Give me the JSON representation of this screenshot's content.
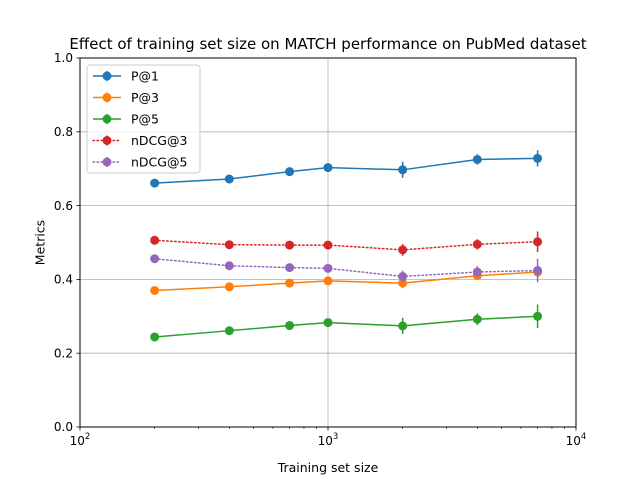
{
  "chart_data": {
    "type": "line",
    "title": "Effect of training set size on MATCH performance on PubMed dataset",
    "xlabel": "Training set size",
    "ylabel": "Metrics",
    "xscale": "log",
    "xlim": [
      100,
      10000
    ],
    "ylim": [
      0.0,
      1.0
    ],
    "x_ticks": [
      {
        "value": 100,
        "base": "10",
        "exp": "2"
      },
      {
        "value": 1000,
        "base": "10",
        "exp": "3"
      },
      {
        "value": 10000,
        "base": "10",
        "exp": "4"
      }
    ],
    "y_ticks": [
      {
        "value": 0.0,
        "label": "0.0"
      },
      {
        "value": 0.2,
        "label": "0.2"
      },
      {
        "value": 0.4,
        "label": "0.4"
      },
      {
        "value": 0.6,
        "label": "0.6"
      },
      {
        "value": 0.8,
        "label": "0.8"
      },
      {
        "value": 1.0,
        "label": "1.0"
      }
    ],
    "grid": "major, both axes",
    "legend_position": "upper left",
    "x": [
      200,
      400,
      700,
      1000,
      2000,
      4000,
      7000
    ],
    "series": [
      {
        "name": "P@1",
        "color": "#1f77b4",
        "linestyle": "solid",
        "values": [
          0.661,
          0.672,
          0.692,
          0.703,
          0.697,
          0.725,
          0.728
        ],
        "errors": [
          0.004,
          0.004,
          0.008,
          0.01,
          0.022,
          0.014,
          0.022
        ]
      },
      {
        "name": "P@3",
        "color": "#ff7f0e",
        "linestyle": "solid",
        "values": [
          0.37,
          0.38,
          0.39,
          0.396,
          0.39,
          0.41,
          0.42
        ],
        "errors": [
          0.004,
          0.004,
          0.006,
          0.008,
          0.014,
          0.012,
          0.014
        ]
      },
      {
        "name": "P@5",
        "color": "#2ca02c",
        "linestyle": "solid",
        "values": [
          0.244,
          0.261,
          0.275,
          0.283,
          0.274,
          0.292,
          0.3
        ],
        "errors": [
          0.004,
          0.004,
          0.006,
          0.006,
          0.022,
          0.016,
          0.032
        ]
      },
      {
        "name": "nDCG@3",
        "color": "#d62728",
        "linestyle": "dotted",
        "values": [
          0.506,
          0.494,
          0.493,
          0.493,
          0.48,
          0.495,
          0.502
        ],
        "errors": [
          0.004,
          0.004,
          0.006,
          0.006,
          0.016,
          0.014,
          0.028
        ]
      },
      {
        "name": "nDCG@5",
        "color": "#9467bd",
        "linestyle": "dotted",
        "values": [
          0.456,
          0.437,
          0.432,
          0.43,
          0.408,
          0.42,
          0.424
        ],
        "errors": [
          0.004,
          0.004,
          0.006,
          0.006,
          0.016,
          0.016,
          0.032
        ]
      }
    ]
  }
}
